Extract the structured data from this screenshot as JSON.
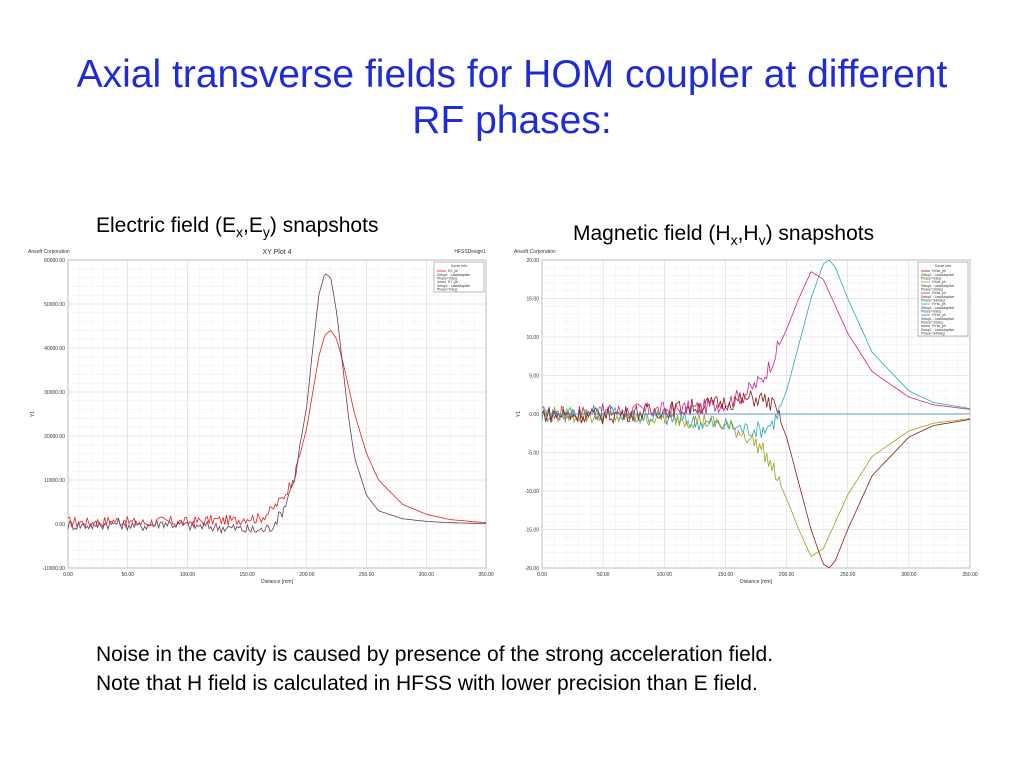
{
  "slide": {
    "title_line1": "Axial transverse fields for HOM coupler at different",
    "title_line2": "RF phases:"
  },
  "captions": {
    "electric": {
      "pre": "Electric field (E",
      "s1": "x",
      "mid": ",E",
      "s2": "y",
      "post": ") snapshots"
    },
    "magnetic": {
      "pre": "Magnetic field (H",
      "s1": "x",
      "mid": ",H",
      "s2": "y",
      "post": ") snapshots"
    }
  },
  "notes": [
    "Noise in the cavity is caused by presence of the strong acceleration field.",
    "Note that H field is calculated in HFSS with lower precision than E field."
  ],
  "chart_data": [
    {
      "type": "line",
      "company": "Ansoft Corporation",
      "title": "XY Plot 4",
      "design": "HFSSDesign1",
      "xlabel": "Distance [mm]",
      "ylabel": "Y1",
      "xlim": [
        0,
        350
      ],
      "ylim": [
        -10000,
        60000
      ],
      "xticks": [
        "0.00",
        "50.00",
        "100.00",
        "150.00",
        "200.00",
        "250.00",
        "300.00",
        "350.00"
      ],
      "yticks": [
        "60000.00",
        "50000.00",
        "40000.00",
        "30000.00",
        "20000.00",
        "10000.00",
        "0.00",
        "-10000.00"
      ],
      "grid": true,
      "legend": {
        "title": "Curve Info",
        "position": "top-right",
        "entries": [
          {
            "name": "EX_ph",
            "line1": "Setup1 : LastAdaptive",
            "line2": "Phase='0deg'",
            "color": "#e02020"
          },
          {
            "name": "EY_ph",
            "line1": "Setup1 : LastAdaptive",
            "line2": "Phase='0deg'",
            "color": "#6a3a5a"
          }
        ]
      },
      "series": [
        {
          "name": "EX_ph",
          "color": "#e02020",
          "x": [
            0,
            20,
            40,
            60,
            80,
            100,
            120,
            140,
            150,
            160,
            170,
            180,
            190,
            200,
            205,
            210,
            215,
            220,
            225,
            230,
            235,
            240,
            250,
            260,
            280,
            300,
            320,
            350
          ],
          "y": [
            500,
            300,
            800,
            200,
            600,
            400,
            900,
            800,
            1500,
            1200,
            3000,
            6000,
            11000,
            22000,
            30000,
            38000,
            43000,
            44000,
            42000,
            37000,
            31000,
            25000,
            16000,
            10000,
            4500,
            2200,
            1000,
            300
          ]
        },
        {
          "name": "EY_ph",
          "color": "#6a3a5a",
          "x": [
            0,
            20,
            40,
            60,
            80,
            100,
            120,
            140,
            150,
            160,
            170,
            180,
            190,
            200,
            205,
            210,
            215,
            220,
            225,
            230,
            235,
            240,
            250,
            260,
            280,
            300,
            320,
            350
          ],
          "y": [
            -200,
            -300,
            200,
            -500,
            300,
            -400,
            -600,
            -1000,
            -1300,
            -1500,
            -800,
            3000,
            11000,
            27000,
            40000,
            52000,
            57000,
            56000,
            48000,
            36000,
            24000,
            15000,
            6500,
            3000,
            1200,
            600,
            300,
            100
          ]
        }
      ]
    },
    {
      "type": "line",
      "company": "Ansoft Corporation",
      "title": "",
      "design": "",
      "xlabel": "Distance [mm]",
      "ylabel": "Y1",
      "xlim": [
        0,
        350
      ],
      "ylim": [
        -20,
        20
      ],
      "xticks": [
        "0.00",
        "50.00",
        "100.00",
        "150.00",
        "200.00",
        "250.00",
        "300.00",
        "350.00"
      ],
      "yticks": [
        "20.00",
        "15.00",
        "10.00",
        "5.00",
        "0.00",
        "-5.00",
        "-10.00",
        "-15.00",
        "-20.00"
      ],
      "grid": true,
      "legend": {
        "title": "Curve Info",
        "position": "top-right",
        "entries": [
          {
            "name": "HXss_ph",
            "line1": "Setup1 : LastAdaptive",
            "line2": "Phase='0deg'",
            "color": "#8b1a1a"
          },
          {
            "name": "HXss_ph",
            "line1": "Setup1 : LastAdaptive",
            "line2": "Phase='20deg'",
            "color": "#9aa020"
          },
          {
            "name": "HXss_ph",
            "line1": "Setup1 : LastAdaptive",
            "line2": "Phase='340deg'",
            "color": "#d02090"
          },
          {
            "name": "HYss_ph",
            "line1": "Setup1 : LastAdaptive",
            "line2": "Phase='0deg'",
            "color": "#2aa8b8"
          },
          {
            "name": "HYss_ph",
            "line1": "Setup1 : LastAdaptive",
            "line2": "Phase='20deg'",
            "color": "#3a7ad0"
          },
          {
            "name": "HYss_ph",
            "line1": "Setup1 : LastAdaptive",
            "line2": "Phase='340deg'",
            "color": "#6b2a1a"
          }
        ]
      },
      "series": [
        {
          "name": "HXss_ph",
          "color": "#d02090",
          "x": [
            0,
            50,
            100,
            130,
            150,
            165,
            180,
            190,
            200,
            210,
            220,
            230,
            240,
            250,
            270,
            300,
            320,
            350
          ],
          "y": [
            0,
            0.3,
            0.5,
            0.8,
            1.5,
            2.5,
            4.5,
            7.5,
            11,
            15,
            18.5,
            17.5,
            14,
            10.5,
            5.5,
            2.2,
            1.2,
            0.6
          ]
        },
        {
          "name": "HYss_ph",
          "color": "#2aa8b8",
          "x": [
            0,
            50,
            100,
            150,
            170,
            180,
            190,
            200,
            210,
            220,
            230,
            235,
            240,
            250,
            270,
            300,
            320,
            350
          ],
          "y": [
            0,
            0.2,
            -0.5,
            -1.5,
            -2.0,
            -2.0,
            -1.0,
            3,
            9,
            15,
            19.5,
            20,
            19,
            15,
            8,
            3,
            1.5,
            0.7
          ]
        },
        {
          "name": "HXss_ph",
          "color": "#9aa020",
          "x": [
            0,
            50,
            100,
            130,
            150,
            165,
            180,
            190,
            200,
            210,
            220,
            230,
            240,
            250,
            270,
            300,
            320,
            350
          ],
          "y": [
            0,
            -0.3,
            -0.5,
            -0.8,
            -1.5,
            -2.5,
            -4.5,
            -7.5,
            -11,
            -15,
            -18.5,
            -17.5,
            -14,
            -10.5,
            -5.5,
            -2.2,
            -1.2,
            -0.6
          ]
        },
        {
          "name": "HYss_ph",
          "color": "#8b1a1a",
          "x": [
            0,
            50,
            100,
            150,
            170,
            180,
            190,
            200,
            210,
            220,
            230,
            235,
            240,
            250,
            270,
            300,
            320,
            350
          ],
          "y": [
            0,
            -0.2,
            0.5,
            1.5,
            2.0,
            2.0,
            1.0,
            -3,
            -9,
            -15,
            -19.5,
            -20,
            -19,
            -15,
            -8,
            -3,
            -1.5,
            -0.7
          ]
        },
        {
          "name": "HYss_ph",
          "color": "#3a7ad0",
          "x": [
            0,
            350
          ],
          "y": [
            0,
            0
          ]
        }
      ]
    }
  ]
}
